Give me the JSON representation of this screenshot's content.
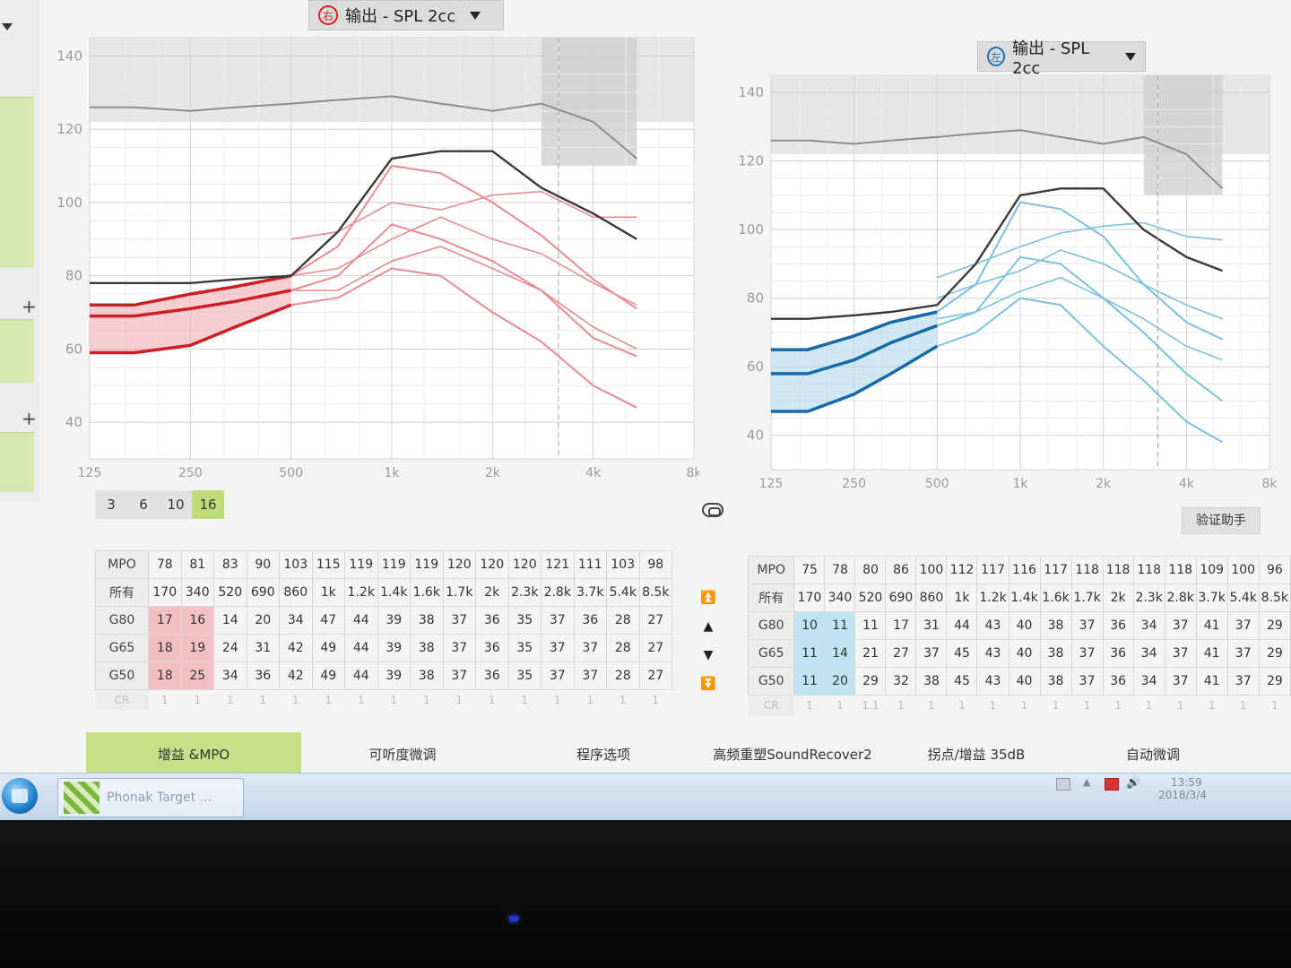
{
  "right_panel": {
    "dropdown": {
      "ear_glyph": "右",
      "label": "输出 - SPL 2cc",
      "ear_color": "#d62020"
    },
    "y_ticks": [
      "140",
      "120",
      "100",
      "80",
      "60",
      "40"
    ],
    "x_ticks": [
      "125",
      "250",
      "500",
      "1k",
      "2k",
      "4k",
      "8k"
    ],
    "levels": [
      "3",
      "6",
      "10",
      "16"
    ],
    "selected_level": "16",
    "table": {
      "mpo_label": "MPO",
      "mpo": [
        "78",
        "81",
        "83",
        "90",
        "103",
        "115",
        "119",
        "119",
        "119",
        "120",
        "120",
        "120",
        "121",
        "111",
        "103",
        "98"
      ],
      "freq_label": "所有",
      "freqs": [
        "170",
        "340",
        "520",
        "690",
        "860",
        "1k",
        "1.2k",
        "1.4k",
        "1.6k",
        "1.7k",
        "2k",
        "2.3k",
        "2.8k",
        "3.7k",
        "5.4k",
        "8.5k"
      ],
      "rows": [
        {
          "label": "G80",
          "values": [
            "17",
            "16",
            "14",
            "20",
            "34",
            "47",
            "44",
            "39",
            "38",
            "37",
            "36",
            "35",
            "37",
            "36",
            "28",
            "27"
          ]
        },
        {
          "label": "G65",
          "values": [
            "18",
            "19",
            "24",
            "31",
            "42",
            "49",
            "44",
            "39",
            "38",
            "37",
            "36",
            "35",
            "37",
            "37",
            "28",
            "27"
          ]
        },
        {
          "label": "G50",
          "values": [
            "18",
            "25",
            "34",
            "36",
            "42",
            "49",
            "44",
            "39",
            "38",
            "37",
            "36",
            "35",
            "37",
            "37",
            "28",
            "27"
          ]
        }
      ],
      "cr_label": "CR",
      "cr": [
        "1",
        "1",
        "1",
        "1",
        "1",
        "1",
        "1",
        "1",
        "1",
        "1",
        "1",
        "1",
        "1",
        "1",
        "1",
        "1"
      ]
    }
  },
  "left_panel": {
    "dropdown": {
      "ear_glyph": "左",
      "label": "输出 - SPL 2cc",
      "ear_color": "#1a6fb0"
    },
    "y_ticks": [
      "140",
      "120",
      "100",
      "80",
      "60",
      "40"
    ],
    "x_ticks": [
      "125",
      "250",
      "500",
      "1k",
      "2k",
      "4k",
      "8k"
    ],
    "verify_button": "验证助手",
    "table": {
      "mpo_label": "MPO",
      "mpo": [
        "75",
        "78",
        "80",
        "86",
        "100",
        "112",
        "117",
        "116",
        "117",
        "118",
        "118",
        "118",
        "118",
        "109",
        "100",
        "96"
      ],
      "freq_label": "所有",
      "freqs": [
        "170",
        "340",
        "520",
        "690",
        "860",
        "1k",
        "1.2k",
        "1.4k",
        "1.6k",
        "1.7k",
        "2k",
        "2.3k",
        "2.8k",
        "3.7k",
        "5.4k",
        "8.5k"
      ],
      "rows": [
        {
          "label": "G80",
          "values": [
            "10",
            "11",
            "11",
            "17",
            "31",
            "44",
            "43",
            "40",
            "38",
            "37",
            "36",
            "34",
            "37",
            "41",
            "37",
            "29"
          ]
        },
        {
          "label": "G65",
          "values": [
            "11",
            "14",
            "21",
            "27",
            "37",
            "45",
            "43",
            "40",
            "38",
            "37",
            "36",
            "34",
            "37",
            "41",
            "37",
            "29"
          ]
        },
        {
          "label": "G50",
          "values": [
            "11",
            "20",
            "29",
            "32",
            "38",
            "45",
            "43",
            "40",
            "38",
            "37",
            "36",
            "34",
            "37",
            "41",
            "37",
            "29"
          ]
        }
      ],
      "cr_label": "CR",
      "cr": [
        "1",
        "1",
        "1.1",
        "1",
        "1",
        "1",
        "1",
        "1",
        "1",
        "1",
        "1",
        "1",
        "1",
        "1",
        "1",
        "1"
      ]
    }
  },
  "tabs": [
    "增益 &MPO",
    "可听度微调",
    "程序选项",
    "高频重塑SoundRecover2",
    "拐点/增益 35dB",
    "自动微调"
  ],
  "active_tab": "增益 &MPO",
  "taskbar": {
    "app_label": "Phonak Target ...",
    "time": "13:59",
    "date": "2018/3/4"
  },
  "colors": {
    "right_accent": "#d62020",
    "left_accent": "#1a6fb0",
    "active_green": "#c6e08a"
  },
  "chart_data": [
    {
      "type": "line",
      "title": "输出 - SPL 2cc",
      "ear": "right",
      "xlabel": "",
      "ylabel": "",
      "x_ticks": [
        "125",
        "250",
        "500",
        "1k",
        "2k",
        "4k",
        "8k"
      ],
      "ylim": [
        30,
        145
      ],
      "x": [
        "125",
        "170",
        "250",
        "340",
        "500",
        "690",
        "1k",
        "1.4k",
        "2k",
        "2.8k",
        "4k",
        "5.4k"
      ],
      "series": [
        {
          "role": "mpo",
          "values": [
            78,
            78,
            78,
            79,
            80,
            92,
            112,
            114,
            114,
            104,
            97,
            90
          ]
        },
        {
          "role": "target-G80",
          "values": [
            null,
            null,
            null,
            null,
            90,
            92,
            100,
            98,
            102,
            103,
            96,
            96
          ]
        },
        {
          "role": "target-G65",
          "values": [
            null,
            null,
            null,
            null,
            80,
            82,
            90,
            96,
            90,
            86,
            78,
            72
          ]
        },
        {
          "role": "target-G50",
          "values": [
            null,
            null,
            null,
            null,
            76,
            76,
            84,
            88,
            82,
            76,
            66,
            60
          ]
        },
        {
          "role": "output-G80",
          "values": [
            72,
            72,
            75,
            77,
            80,
            88,
            110,
            108,
            100,
            91,
            79,
            71
          ]
        },
        {
          "role": "output-G65",
          "values": [
            69,
            69,
            71,
            73,
            76,
            80,
            94,
            90,
            84,
            76,
            63,
            58
          ]
        },
        {
          "role": "output-G50",
          "values": [
            59,
            59,
            61,
            66,
            72,
            74,
            82,
            80,
            70,
            62,
            50,
            44
          ]
        }
      ]
    },
    {
      "type": "line",
      "title": "输出 - SPL 2cc",
      "ear": "left",
      "xlabel": "",
      "ylabel": "",
      "x_ticks": [
        "125",
        "250",
        "500",
        "1k",
        "2k",
        "4k",
        "8k"
      ],
      "ylim": [
        30,
        145
      ],
      "x": [
        "125",
        "170",
        "250",
        "340",
        "500",
        "690",
        "1k",
        "1.4k",
        "2k",
        "2.8k",
        "4k",
        "5.4k"
      ],
      "series": [
        {
          "role": "mpo",
          "values": [
            74,
            74,
            75,
            76,
            78,
            90,
            110,
            112,
            112,
            100,
            92,
            88
          ]
        },
        {
          "role": "target-G80",
          "values": [
            null,
            null,
            null,
            null,
            86,
            90,
            95,
            99,
            101,
            102,
            98,
            97
          ]
        },
        {
          "role": "target-G65",
          "values": [
            null,
            null,
            null,
            null,
            80,
            84,
            88,
            94,
            90,
            84,
            78,
            74
          ]
        },
        {
          "role": "target-G50",
          "values": [
            null,
            null,
            null,
            null,
            74,
            76,
            82,
            86,
            80,
            74,
            66,
            62
          ]
        },
        {
          "role": "output-G80",
          "values": [
            65,
            65,
            69,
            73,
            76,
            84,
            108,
            106,
            98,
            84,
            73,
            68
          ]
        },
        {
          "role": "output-G65",
          "values": [
            58,
            58,
            62,
            67,
            72,
            76,
            92,
            90,
            80,
            70,
            58,
            50
          ]
        },
        {
          "role": "output-G50",
          "values": [
            47,
            47,
            52,
            58,
            66,
            70,
            80,
            78,
            66,
            56,
            44,
            38
          ]
        }
      ]
    }
  ]
}
